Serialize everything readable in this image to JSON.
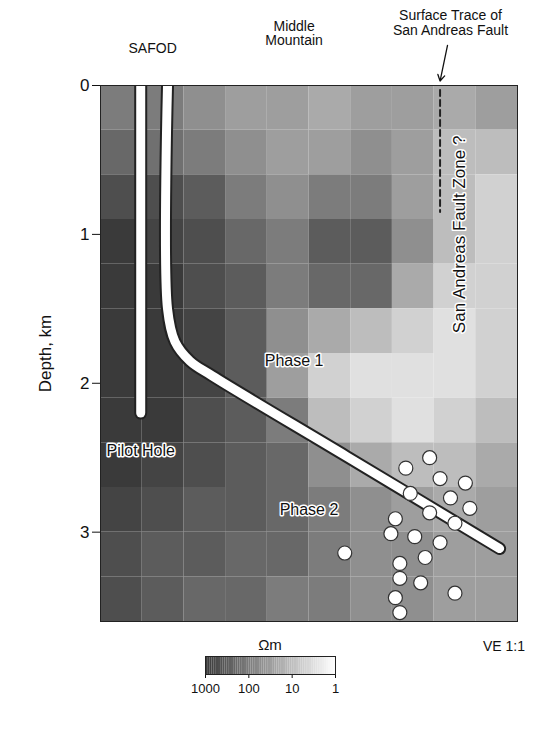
{
  "chart_data": {
    "type": "heatmap",
    "y_label": "Depth, km",
    "xlim": [
      0,
      2.8
    ],
    "ylim": [
      0,
      3.6
    ],
    "yticks": [
      0,
      1,
      2,
      3
    ],
    "tick_labels": "y",
    "log": true,
    "cells": {
      "x_edges": [
        0,
        0.28,
        0.56,
        0.84,
        1.12,
        1.4,
        1.68,
        1.96,
        2.24,
        2.52,
        2.8
      ],
      "depth_edges": [
        0,
        0.3,
        0.6,
        0.9,
        1.2,
        1.5,
        1.8,
        2.1,
        2.4,
        2.7,
        3.0,
        3.3,
        3.6
      ],
      "values": [
        [
          100,
          100,
          50,
          30,
          30,
          20,
          30,
          30,
          20,
          30
        ],
        [
          200,
          150,
          100,
          50,
          30,
          30,
          50,
          30,
          10,
          10
        ],
        [
          500,
          500,
          300,
          100,
          50,
          100,
          100,
          30,
          10,
          5
        ],
        [
          1000,
          700,
          500,
          200,
          100,
          300,
          300,
          50,
          10,
          5
        ],
        [
          1000,
          1000,
          500,
          300,
          100,
          200,
          200,
          20,
          5,
          5
        ],
        [
          1000,
          1000,
          700,
          300,
          50,
          20,
          10,
          5,
          3,
          5
        ],
        [
          1000,
          1000,
          700,
          300,
          30,
          5,
          3,
          3,
          3,
          5
        ],
        [
          1000,
          1000,
          500,
          300,
          100,
          10,
          5,
          3,
          5,
          10
        ],
        [
          1000,
          700,
          500,
          300,
          200,
          50,
          20,
          10,
          10,
          20
        ],
        [
          700,
          500,
          300,
          300,
          200,
          100,
          50,
          30,
          20,
          30
        ],
        [
          500,
          300,
          300,
          200,
          200,
          100,
          50,
          50,
          30,
          30
        ],
        [
          500,
          300,
          200,
          200,
          100,
          100,
          50,
          50,
          30,
          30
        ]
      ]
    },
    "colorbar": {
      "label": "Ωm",
      "range": [
        1,
        1000
      ],
      "ticks": [
        1000,
        100,
        10,
        1
      ]
    },
    "boreholes": [
      {
        "name": "Pilot Hole",
        "x": [
          0.27,
          0.27
        ],
        "depth": [
          0,
          2.2
        ]
      },
      {
        "name": "SAFOD",
        "x": [
          0.45,
          0.45,
          0.5,
          0.6,
          0.75,
          1.65,
          2.68
        ],
        "depth": [
          0,
          1.5,
          1.72,
          1.85,
          1.95,
          2.49,
          3.11
        ]
      }
    ],
    "earthquakes": {
      "x": [
        2.21,
        2.05,
        2.28,
        2.45,
        2.08,
        2.35,
        2.48,
        2.21,
        1.98,
        2.38,
        1.95,
        2.11,
        2.28,
        1.64,
        2.18,
        2.01,
        2.15,
        2.01,
        2.38,
        1.98,
        2.01
      ],
      "depth": [
        2.5,
        2.57,
        2.64,
        2.67,
        2.74,
        2.77,
        2.84,
        2.87,
        2.91,
        2.94,
        3.01,
        3.03,
        3.07,
        3.14,
        3.17,
        3.21,
        3.34,
        3.31,
        3.41,
        3.44,
        3.54
      ]
    },
    "fault_zone": {
      "x": 2.28,
      "depth": [
        0.03,
        0.85
      ]
    },
    "annotations": [
      {
        "text": "SAFOD",
        "x": 0.35,
        "y": -0.25
      },
      {
        "text": "Middle Mountain",
        "x": 1.3,
        "y": -0.35
      },
      {
        "text": "Surface Trace of San Andreas Fault",
        "x": 2.35,
        "y": -0.42,
        "arrow": {
          "from": [
            2.33,
            -0.27
          ],
          "to": [
            2.28,
            -0.03
          ]
        }
      },
      {
        "text": "Phase 1",
        "x": 1.3,
        "y": 1.85
      },
      {
        "text": "Phase 2",
        "x": 1.4,
        "y": 2.85
      },
      {
        "text": "Pilot Hole",
        "x": 0.27,
        "y": 2.45
      },
      {
        "text": "San Andreas Fault Zone ?",
        "x": 2.41,
        "y": 1.0,
        "vertical": true
      }
    ],
    "scale_note": "VE 1:1"
  }
}
